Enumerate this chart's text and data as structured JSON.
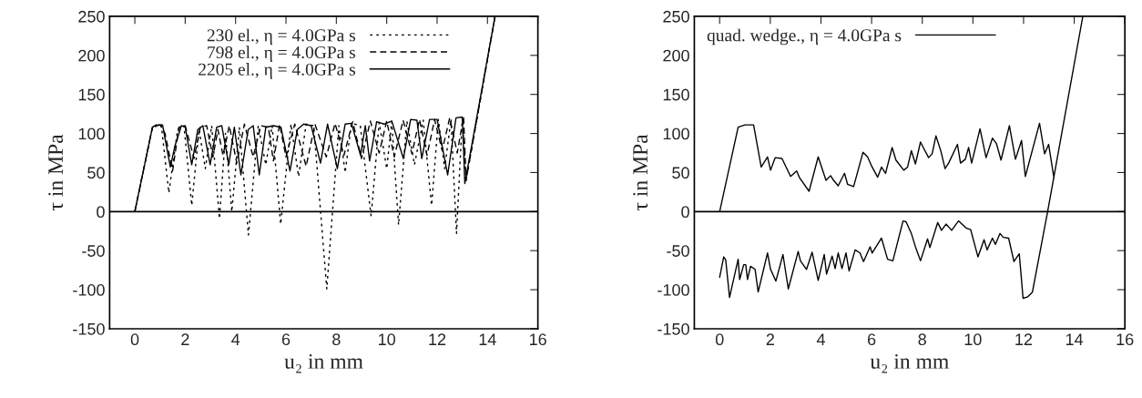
{
  "chart_data": [
    {
      "type": "line",
      "xlabel": "u₂ in mm",
      "ylabel": "τ in MPa",
      "xlim": [
        -1,
        16
      ],
      "ylim": [
        -150,
        250
      ],
      "xticks": [
        0,
        2,
        4,
        6,
        8,
        10,
        12,
        14,
        16
      ],
      "yticks": [
        -150,
        -100,
        -50,
        0,
        50,
        100,
        150,
        200,
        250
      ],
      "legend": "top",
      "grid": false,
      "ref_lines": [
        {
          "axis": "y",
          "value": 0
        }
      ],
      "series": [
        {
          "name": "230 el., η = 4.0GPa s",
          "color": "#000000",
          "line_style": "dotted",
          "x": [
            0,
            0.7,
            1.05,
            1.35,
            1.7,
            1.95,
            2.26,
            2.55,
            2.8,
            3.05,
            3.36,
            3.6,
            3.85,
            4.15,
            4.51,
            4.9,
            5.2,
            5.45,
            5.79,
            6.2,
            6.5,
            6.8,
            7.1,
            7.62,
            8.1,
            8.35,
            8.6,
            8.95,
            9.38,
            9.7,
            10.0,
            10.2,
            10.47,
            10.8,
            11.1,
            11.45,
            11.78,
            12.05,
            12.3,
            12.55,
            12.77,
            13.0,
            13.15,
            14.3
          ],
          "values": [
            0,
            108,
            111,
            24,
            105,
            110,
            8,
            105,
            55,
            110,
            -9,
            100,
            0,
            108,
            -30,
            110,
            60,
            110,
            -16,
            112,
            45,
            112,
            110,
            -99,
            110,
            50,
            113,
            110,
            -6,
            114,
            55,
            115,
            -17,
            116,
            60,
            117,
            8,
            118,
            55,
            118,
            -28,
            120,
            40,
            250
          ]
        },
        {
          "name": "798 el., η = 4.0GPa s",
          "color": "#000000",
          "line_style": "dashed",
          "x": [
            0,
            0.7,
            1.0,
            1.2,
            1.5,
            1.75,
            2.0,
            2.35,
            2.6,
            2.85,
            3.1,
            3.3,
            3.5,
            3.75,
            4.05,
            4.35,
            4.7,
            5.0,
            5.3,
            5.5,
            5.75,
            6.0,
            6.35,
            6.8,
            7.15,
            7.6,
            7.95,
            8.3,
            8.65,
            9.0,
            9.35,
            9.7,
            10.0,
            10.3,
            10.65,
            11.0,
            11.3,
            11.6,
            11.9,
            12.2,
            12.5,
            12.8,
            13.05,
            13.15,
            14.3
          ],
          "values": [
            0,
            108,
            111,
            100,
            52,
            108,
            110,
            68,
            108,
            110,
            70,
            105,
            72,
            110,
            62,
            112,
            70,
            110,
            108,
            65,
            112,
            70,
            112,
            58,
            112,
            70,
            113,
            72,
            115,
            68,
            116,
            75,
            116,
            70,
            117,
            74,
            118,
            72,
            118,
            78,
            120,
            75,
            122,
            40,
            250
          ]
        },
        {
          "name": "2205 el., η = 4.0GPa s",
          "color": "#000000",
          "line_style": "solid",
          "x": [
            0,
            0.7,
            0.85,
            1.1,
            1.41,
            1.6,
            1.85,
            2.0,
            2.26,
            2.5,
            2.7,
            2.99,
            3.25,
            3.45,
            3.73,
            3.95,
            4.21,
            4.5,
            4.7,
            4.94,
            5.2,
            5.5,
            5.8,
            6.16,
            6.45,
            6.7,
            7.0,
            7.37,
            7.65,
            8.04,
            8.35,
            8.6,
            8.96,
            9.15,
            9.32,
            9.6,
            9.9,
            10.2,
            10.66,
            10.95,
            11.2,
            11.39,
            11.7,
            12.0,
            12.42,
            12.75,
            13.0,
            13.1,
            14.3
          ],
          "values": [
            0,
            108,
            111,
            111,
            57,
            85,
            110,
            108,
            60,
            105,
            110,
            60,
            108,
            110,
            60,
            108,
            47,
            105,
            110,
            47,
            108,
            110,
            108,
            52,
            105,
            112,
            110,
            62,
            112,
            55,
            112,
            113,
            72,
            110,
            65,
            115,
            112,
            116,
            68,
            118,
            117,
            68,
            118,
            118,
            47,
            120,
            121,
            36,
            250
          ]
        }
      ]
    },
    {
      "type": "line",
      "xlabel": "u₂ in mm",
      "ylabel": "τ in MPa",
      "xlim": [
        -1,
        16
      ],
      "ylim": [
        -150,
        250
      ],
      "xticks": [
        0,
        2,
        4,
        6,
        8,
        10,
        12,
        14,
        16
      ],
      "yticks": [
        -150,
        -100,
        -50,
        0,
        50,
        100,
        150,
        200,
        250
      ],
      "legend": "top left",
      "grid": false,
      "ref_lines": [
        {
          "axis": "y",
          "value": 0
        }
      ],
      "series": [
        {
          "name": "quad. wedge., η = 4.0GPa s",
          "color": "#000000",
          "line_style": "solid",
          "x": [
            0,
            0.73,
            1.0,
            1.34,
            1.64,
            1.89,
            2.01,
            2.19,
            2.46,
            2.8,
            3.04,
            3.16,
            3.53,
            3.89,
            4.2,
            4.38,
            4.5,
            4.68,
            4.93,
            5.05,
            5.29,
            5.66,
            5.84,
            6.02,
            6.24,
            6.39,
            6.55,
            6.81,
            6.96,
            7.27,
            7.42,
            7.57,
            7.73,
            7.93,
            8.25,
            8.39,
            8.54,
            8.73,
            8.9,
            9.04,
            9.39,
            9.51,
            9.7,
            9.83,
            9.95,
            10.28,
            10.52,
            10.77,
            10.93,
            11.11,
            11.44,
            11.68,
            11.92,
            12.07,
            12.63,
            12.83,
            12.99,
            13.2,
            null,
            0,
            0.16,
            0.24,
            0.39,
            0.73,
            0.79,
            0.95,
            1.03,
            1.1,
            1.22,
            1.4,
            1.52,
            1.89,
            2.01,
            2.22,
            2.5,
            2.71,
            3.1,
            3.19,
            3.43,
            3.65,
            3.89,
            4.13,
            4.22,
            4.44,
            4.56,
            4.68,
            4.83,
            4.99,
            5.11,
            5.35,
            5.54,
            5.68,
            5.94,
            6.02,
            6.39,
            6.63,
            6.84,
            7.24,
            7.36,
            7.57,
            7.73,
            7.93,
            8.21,
            8.3,
            8.61,
            8.76,
            8.94,
            9.16,
            9.43,
            9.73,
            9.91,
            10.2,
            10.44,
            10.56,
            10.77,
            10.89,
            11.07,
            11.2,
            11.41,
            11.62,
            11.83,
            11.98,
            12.17,
            12.35,
            12.95,
            14.34
          ],
          "values": [
            0,
            108,
            111,
            111,
            57,
            70,
            53,
            69,
            68,
            45,
            52,
            43,
            26,
            70,
            40,
            46,
            40,
            33,
            49,
            35,
            32,
            76,
            70,
            57,
            44,
            57,
            49,
            82,
            66,
            53,
            57,
            78,
            61,
            89,
            69,
            74,
            97,
            78,
            55,
            62,
            86,
            62,
            67,
            82,
            62,
            106,
            69,
            94,
            87,
            66,
            110,
            67,
            91,
            45,
            113,
            74,
            86,
            43,
            null,
            -84,
            -58,
            -62,
            -110,
            -61,
            -87,
            -68,
            -68,
            -87,
            -70,
            -74,
            -103,
            -53,
            -74,
            -89,
            -55,
            -99,
            -51,
            -63,
            -74,
            -52,
            -88,
            -55,
            -80,
            -57,
            -73,
            -53,
            -73,
            -53,
            -76,
            -49,
            -53,
            -64,
            -45,
            -53,
            -34,
            -61,
            -63,
            -12,
            -13,
            -28,
            -45,
            -63,
            -35,
            -46,
            -14,
            -24,
            -16,
            -24,
            -12,
            -21,
            -23,
            -58,
            -36,
            -49,
            -34,
            -42,
            -28,
            -33,
            -34,
            -64,
            -54,
            -111,
            -109,
            -103,
            0,
            250
          ]
        }
      ]
    }
  ]
}
